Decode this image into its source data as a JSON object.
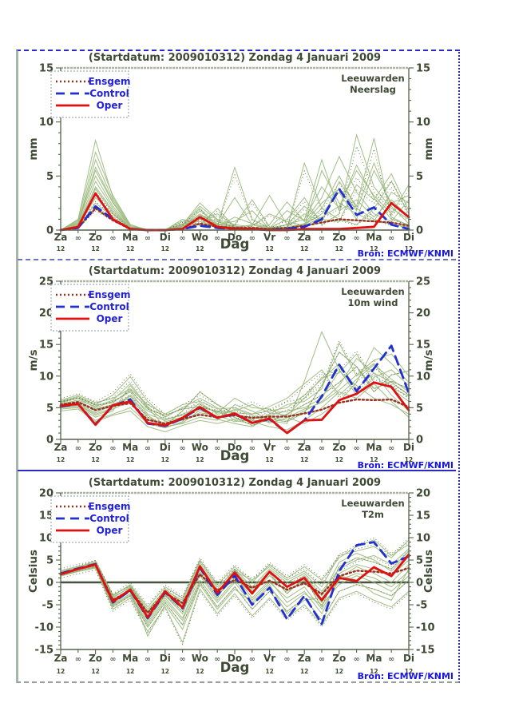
{
  "figure": {
    "bron_label": "Bron: ECMWF/KNMI",
    "x_axis_label": "Dag",
    "day_labels": [
      "Za",
      "Zo",
      "Ma",
      "Di",
      "Wo",
      "Do",
      "Vr",
      "Za",
      "Zo",
      "Ma",
      "Di"
    ],
    "between_day_label": "∞",
    "hour_label": "12",
    "legend": [
      {
        "label": "Ensgem",
        "series": "ensgem"
      },
      {
        "label": "Control",
        "series": "control"
      },
      {
        "label": "Oper",
        "series": "oper"
      }
    ],
    "colors": {
      "member_green": "#9dbb80",
      "member_speckle": "#5a7040",
      "ensgem_brown": "#94341f",
      "control_blue": "#2130cf",
      "oper_red": "#e01010",
      "legend_text_blue": "#2323d6",
      "axis_text": "#3e4a34",
      "axis_line": "#55624a",
      "top_frame_gray": "#aab6a2",
      "bron_blue": "#1616e6"
    }
  },
  "chart_data": [
    {
      "type": "line",
      "title": "(Startdatum: 2009010312)  Zondag    4 Januari  2009",
      "station": "Leeuwarden",
      "variable": "Neerslag",
      "ylabel": "mm",
      "ylim": [
        0,
        15
      ],
      "yticks": [
        0,
        5,
        10,
        15
      ],
      "x_hours_step": 12,
      "zero_line": false,
      "series": {
        "ensgem": [
          0,
          0.2,
          2.0,
          0.9,
          0.1,
          0,
          0,
          0.1,
          0.6,
          0.3,
          0.2,
          0.2,
          0.1,
          0.2,
          0.4,
          0.7,
          1.0,
          0.9,
          0.8,
          0.7,
          0.4
        ],
        "control": [
          0,
          0.2,
          2.2,
          1.0,
          0.1,
          0,
          0,
          0.1,
          0.4,
          0.2,
          0.1,
          0.1,
          0,
          0.1,
          0.3,
          1.0,
          3.8,
          1.4,
          2.1,
          0.5,
          0.1
        ],
        "oper": [
          0,
          0.3,
          3.4,
          1.0,
          0.1,
          0,
          0,
          0.1,
          1.2,
          0.3,
          0.1,
          0.1,
          0,
          0,
          0.1,
          0.1,
          0.1,
          0.2,
          0.3,
          2.5,
          1.2
        ]
      },
      "members": [
        [
          0,
          0.5,
          4.5,
          2,
          0.2,
          0,
          0,
          0.3,
          1.5,
          0.5,
          0.2,
          0.1,
          0,
          0.2,
          0.5,
          2,
          5,
          2,
          1,
          0.5,
          0.3
        ],
        [
          0,
          1,
          8.3,
          3,
          0.5,
          0,
          0,
          0.5,
          2.5,
          1,
          0.5,
          0.3,
          0.1,
          0.5,
          1,
          4,
          2,
          6,
          3,
          1,
          0.5
        ],
        [
          0,
          0.2,
          2,
          1,
          0,
          0,
          0,
          1,
          0.5,
          2,
          0.3,
          0,
          0.2,
          1,
          3,
          0.5,
          1.5,
          8.8,
          4,
          2,
          1
        ],
        [
          0,
          0.8,
          5.5,
          2.5,
          0.3,
          0,
          0,
          0.2,
          1,
          0.5,
          3,
          0.5,
          0.1,
          0,
          0.5,
          1.5,
          3.5,
          1,
          5.5,
          2.5,
          3.2
        ],
        [
          0,
          0.3,
          3,
          1.5,
          0.1,
          0,
          0,
          0.4,
          2,
          0.3,
          0.5,
          2.8,
          0.3,
          0.1,
          6.2,
          2,
          1,
          0.5,
          2,
          4.5,
          1.5
        ],
        [
          0,
          0.6,
          6.5,
          2.8,
          0.4,
          0,
          0,
          0.3,
          1.2,
          0.8,
          0.2,
          0.5,
          3.2,
          0.5,
          0.3,
          5.5,
          2.5,
          1.5,
          0.8,
          3.5,
          2.5
        ],
        [
          0,
          0.4,
          4,
          1.8,
          0.2,
          0,
          0,
          0.6,
          0.8,
          0.4,
          5.8,
          1,
          0.2,
          0.3,
          1.5,
          0.8,
          4.5,
          2.2,
          8.5,
          1.2,
          0.4
        ],
        [
          0,
          0.7,
          5,
          2.2,
          0.3,
          0,
          0,
          0.2,
          1.8,
          0.6,
          0.3,
          0.2,
          0.5,
          2.6,
          0.8,
          3,
          6.8,
          3.5,
          1.5,
          0.8,
          2.8
        ],
        [
          0,
          0.2,
          2.5,
          1.2,
          0.1,
          0,
          0,
          0.8,
          1,
          1.5,
          0.4,
          0.1,
          0.2,
          0.5,
          2.2,
          1,
          0.8,
          4.2,
          2.8,
          5.2,
          1.8
        ],
        [
          0,
          0.9,
          7.2,
          3.2,
          0.5,
          0,
          0,
          0.3,
          1.4,
          0.5,
          0.8,
          1.8,
          0.1,
          0.2,
          0.6,
          2.5,
          3.8,
          1.8,
          6.2,
          2.2,
          0.6
        ],
        [
          0,
          0.4,
          3.8,
          1.6,
          0.2,
          0,
          0,
          0.5,
          2.2,
          0.9,
          0.3,
          0.4,
          1.5,
          0.8,
          0.4,
          1.2,
          2.2,
          5.5,
          3.2,
          1.5,
          4.2
        ],
        [
          0,
          0.6,
          5.8,
          2.6,
          0.3,
          0,
          0,
          0.4,
          0.6,
          0.3,
          1.2,
          0.6,
          0.2,
          1.8,
          0.9,
          6.5,
          1.8,
          2.8,
          1.2,
          2.8,
          1.2
        ]
      ]
    },
    {
      "type": "line",
      "title": "(Startdatum: 2009010312)  Zondag    4 Januari  2009",
      "station": "Leeuwarden",
      "variable": "10m wind",
      "ylabel": "m/s",
      "ylim": [
        0,
        25
      ],
      "yticks": [
        0,
        5,
        10,
        15,
        20,
        25
      ],
      "x_hours_step": 12,
      "zero_line": false,
      "series": {
        "ensgem": [
          5.5,
          5.9,
          4.6,
          5.3,
          5.7,
          3.1,
          2.5,
          3.2,
          3.9,
          3.5,
          3.8,
          3.4,
          3.6,
          3.6,
          4.1,
          4.7,
          5.8,
          6.3,
          6.2,
          6.3,
          5.1
        ],
        "control": [
          5.2,
          5.6,
          2.4,
          5.3,
          6.3,
          2.5,
          2.1,
          3.3,
          5.0,
          3.4,
          4.0,
          2.6,
          3.2,
          1.0,
          3.0,
          6.8,
          11.8,
          7.6,
          11.2,
          14.8,
          7.3
        ],
        "oper": [
          5.3,
          5.6,
          2.3,
          5.4,
          6.0,
          2.6,
          2.2,
          3.4,
          5.1,
          3.4,
          4.1,
          2.6,
          3.3,
          1.0,
          3.0,
          3.1,
          6.2,
          7.2,
          9.0,
          8.3,
          4.6
        ]
      },
      "members": [
        [
          5.8,
          6.5,
          5,
          6,
          7.5,
          4,
          3,
          4,
          5,
          4.5,
          4.2,
          4,
          4.5,
          5,
          7,
          9.5,
          12,
          8,
          10.5,
          9,
          7
        ],
        [
          5,
          5.2,
          3.5,
          4.5,
          8.5,
          5,
          2,
          2.5,
          3.5,
          3,
          5.5,
          4.5,
          3,
          2.5,
          9.2,
          17,
          11,
          7,
          9.8,
          11,
          8.5
        ],
        [
          6,
          6.8,
          5.5,
          7,
          9.9,
          6,
          3.5,
          5,
          6.5,
          5,
          3,
          2.5,
          4,
          5.5,
          6,
          8,
          15.2,
          10,
          12,
          8,
          6
        ],
        [
          4.8,
          5,
          3,
          4,
          5,
          2.5,
          1.8,
          2.8,
          5.5,
          4.2,
          6.5,
          5,
          4.8,
          3.5,
          2.5,
          4,
          6,
          9,
          14.5,
          12,
          9
        ],
        [
          5.5,
          6,
          4.8,
          5.5,
          6.5,
          3.5,
          2.2,
          4.5,
          7.5,
          5.5,
          4,
          3,
          2.8,
          4,
          5.5,
          7,
          9,
          11.5,
          7.5,
          10.2,
          10.8
        ],
        [
          5.2,
          5.5,
          4,
          5,
          7,
          4.5,
          3.2,
          3.8,
          4.8,
          3.2,
          2.5,
          2,
          3.5,
          3,
          4.5,
          6,
          8.5,
          12.8,
          10.5,
          7,
          4.5
        ],
        [
          6.2,
          7,
          5.8,
          6.5,
          8,
          5.5,
          4,
          5.5,
          6,
          4.8,
          5,
          4,
          5.2,
          6.5,
          8.8,
          11,
          7,
          9.5,
          11.8,
          9.5,
          7.5
        ],
        [
          4.5,
          4.8,
          2.8,
          3.8,
          4.5,
          2,
          1.2,
          2.2,
          3,
          2.5,
          3.2,
          2.8,
          2,
          1.5,
          3,
          5,
          7.5,
          6.5,
          8.8,
          6,
          3.5
        ],
        [
          5.6,
          6.2,
          5.2,
          6.2,
          8.8,
          5.2,
          2.8,
          3.5,
          5.8,
          4,
          4.5,
          5.5,
          4.2,
          3.8,
          6.5,
          9.8,
          10.5,
          13.5,
          9,
          8.2,
          6.8
        ],
        [
          5,
          5.4,
          3.8,
          4.8,
          6,
          3,
          2.5,
          3,
          4.2,
          3.8,
          2.8,
          3.2,
          3.8,
          4.5,
          5,
          6.5,
          10.8,
          8.5,
          6.5,
          5.5,
          4
        ],
        [
          5.9,
          6.6,
          5.4,
          5.8,
          7.8,
          4.8,
          3.8,
          4.8,
          5.2,
          4.4,
          3.5,
          2.2,
          3.2,
          2.8,
          4.2,
          8.5,
          13.8,
          11.5,
          8,
          9.2,
          8
        ],
        [
          5.3,
          5.7,
          4.2,
          5.4,
          6.8,
          3.8,
          2,
          2.6,
          4.6,
          3.4,
          4.8,
          3.8,
          2.6,
          3.4,
          4.8,
          5.8,
          7.8,
          10.2,
          12.5,
          13.5,
          10
        ]
      ]
    },
    {
      "type": "line",
      "title": "(Startdatum: 2009010312)  Zondag    4 Januari  2009",
      "station": "Leeuwarden",
      "variable": "T2m",
      "ylabel": "Celsius",
      "ylim": [
        -15,
        20
      ],
      "yticks": [
        -15,
        -10,
        -5,
        0,
        5,
        10,
        15,
        20
      ],
      "x_hours_step": 12,
      "zero_line": true,
      "series": {
        "ensgem": [
          2.0,
          3.0,
          3.9,
          -3.9,
          -1.8,
          -6.8,
          -2.4,
          -4.6,
          1.8,
          -1.8,
          0.6,
          -1.2,
          0.4,
          -1.6,
          -0.2,
          -2.6,
          1.4,
          2.6,
          2.4,
          2.0,
          3.2
        ],
        "control": [
          2.0,
          3.1,
          4.1,
          -4.5,
          -1.8,
          -8.0,
          -2.2,
          -5.8,
          3.3,
          -2.8,
          1.5,
          -5.0,
          -1.2,
          -8.2,
          -3.0,
          -9.3,
          2.5,
          8.3,
          9.0,
          4.2,
          5.8
        ],
        "oper": [
          1.8,
          3.0,
          4.0,
          -4.3,
          -1.6,
          -7.8,
          -2.0,
          -5.6,
          3.6,
          -2.3,
          2.2,
          -2.5,
          2.4,
          -1.0,
          1.0,
          -4.0,
          1.0,
          0.3,
          3.4,
          1.4,
          6.2
        ]
      },
      "members": [
        [
          2,
          3,
          4.2,
          -3.5,
          -1,
          -6.5,
          -1.5,
          -4.5,
          4,
          -1.5,
          3,
          -1,
          3,
          0,
          2,
          -2,
          3,
          5,
          6,
          4,
          7.5
        ],
        [
          1.5,
          2.5,
          3.8,
          -5,
          -2.5,
          -9,
          -3.5,
          -8,
          1.5,
          -4,
          0.5,
          -4,
          0,
          -3.5,
          -1,
          -6,
          0.5,
          2,
          1,
          -1,
          2.5
        ],
        [
          2.2,
          3.2,
          4.5,
          -3,
          -0.5,
          -5.5,
          -1,
          -3.5,
          5,
          -0.5,
          3.5,
          0,
          4,
          1,
          3.5,
          0.5,
          5.5,
          8,
          9.5,
          6,
          8.5
        ],
        [
          1.8,
          2.8,
          3.6,
          -4.8,
          -2,
          -8.5,
          -3,
          -7,
          2.5,
          -3,
          1,
          -2.5,
          1.5,
          -2,
          0.5,
          -4.5,
          2,
          4,
          3,
          1.5,
          5
        ],
        [
          1.6,
          2.6,
          3.4,
          -5.5,
          -3,
          -10,
          -4.5,
          -9.5,
          0,
          -5.5,
          -1,
          -6,
          -2,
          -6.5,
          -3.5,
          -8.5,
          -2,
          -0.5,
          -1.5,
          -3,
          0.5
        ],
        [
          2.4,
          3.4,
          4.8,
          -2.8,
          -0.8,
          -6,
          -2,
          -5,
          3.5,
          -2,
          2,
          -1.5,
          2.5,
          -1,
          1.5,
          -3,
          4.5,
          6.5,
          5,
          2.5,
          6.5
        ],
        [
          1.4,
          2.4,
          3.2,
          -6,
          -3.5,
          -11,
          -5.5,
          -13.4,
          -1.5,
          -7,
          -2.5,
          -7.5,
          -3.5,
          -8,
          -5,
          -9.5,
          -3.5,
          -2,
          -4,
          -5.5,
          -2
        ],
        [
          2,
          3,
          4,
          -4,
          -1.5,
          -7.5,
          -2.5,
          -6,
          3,
          -2.5,
          1.5,
          -3.5,
          0.5,
          -4.5,
          -2,
          -7,
          1,
          3.5,
          2,
          0,
          4
        ],
        [
          2.6,
          3.6,
          4.4,
          -3.2,
          -1.2,
          -7,
          -1.8,
          -4,
          4.5,
          -1,
          2.5,
          0.5,
          3.5,
          0.5,
          2.5,
          -1,
          6,
          7,
          8,
          5.5,
          9.5
        ],
        [
          1.7,
          2.7,
          3.5,
          -5.2,
          -2.8,
          -9.5,
          -4,
          -8.5,
          0.5,
          -4.5,
          0,
          -5,
          -1,
          -5.5,
          -2.5,
          -5,
          -0.5,
          1.5,
          0,
          -2,
          1.5
        ],
        [
          2.1,
          3.1,
          4.1,
          -4.2,
          -1.4,
          -8,
          -2.8,
          -6.5,
          2,
          -3.5,
          2.8,
          -2,
          2,
          -2.5,
          1,
          -5.5,
          3.5,
          5.5,
          4.5,
          3,
          7
        ],
        [
          1.9,
          2.9,
          3.9,
          -4.5,
          -1.8,
          -12,
          -5,
          -10.5,
          -0.5,
          -6,
          -1.5,
          -4.5,
          -0.5,
          -7,
          -4,
          -3.5,
          1.5,
          0.5,
          -2.5,
          -4,
          3
        ]
      ]
    }
  ]
}
